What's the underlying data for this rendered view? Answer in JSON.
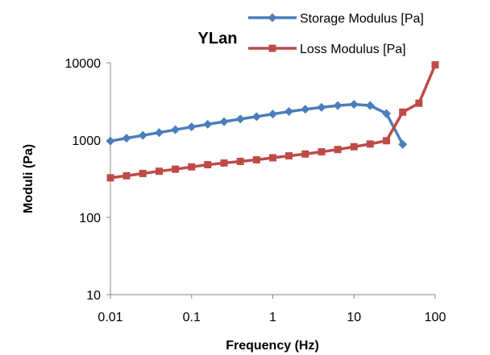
{
  "chart_data": {
    "type": "line",
    "title": "YLan",
    "xlabel": "Frequency (Hz)",
    "ylabel": "Moduli (Pa)",
    "x_scale": "log",
    "y_scale": "log",
    "xlim": [
      0.01,
      100
    ],
    "ylim": [
      10,
      10000
    ],
    "x_ticks": [
      "0.01",
      "0.1",
      "1",
      "10",
      "100"
    ],
    "y_ticks": [
      "10",
      "100",
      "1000",
      "10000"
    ],
    "grid": false,
    "legend_position": "top-right",
    "series": [
      {
        "name": "Storage Modulus [Pa]",
        "color": "#4a7ebb",
        "marker": "diamond",
        "x": [
          0.01,
          0.0158,
          0.0251,
          0.0398,
          0.0631,
          0.1,
          0.158,
          0.251,
          0.398,
          0.631,
          1,
          1.58,
          2.51,
          3.98,
          6.31,
          10,
          15.8,
          25.1,
          39.8
        ],
        "y": [
          970,
          1060,
          1150,
          1250,
          1360,
          1480,
          1600,
          1730,
          1870,
          2010,
          2170,
          2340,
          2500,
          2650,
          2800,
          2900,
          2800,
          2200,
          880
        ]
      },
      {
        "name": "Loss Modulus [Pa]",
        "color": "#be4b48",
        "marker": "square",
        "x": [
          0.01,
          0.0158,
          0.0251,
          0.0398,
          0.0631,
          0.1,
          0.158,
          0.251,
          0.398,
          0.631,
          1,
          1.58,
          2.51,
          3.98,
          6.31,
          10,
          15.8,
          25.1,
          39.8,
          63.1,
          100
        ],
        "y": [
          325,
          345,
          370,
          395,
          420,
          450,
          480,
          505,
          530,
          555,
          590,
          625,
          660,
          705,
          755,
          820,
          890,
          980,
          2300,
          3000,
          9400
        ]
      }
    ]
  }
}
